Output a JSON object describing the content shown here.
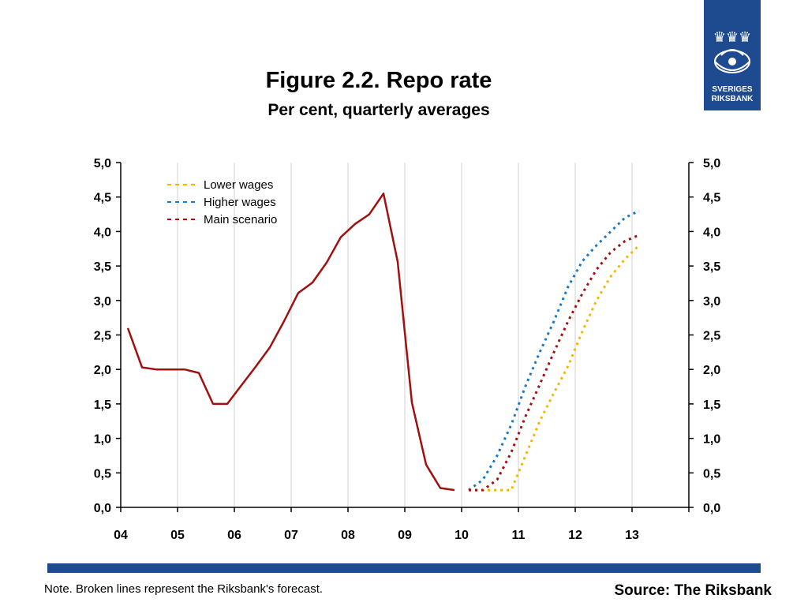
{
  "title": "Figure 2.2. Repo rate",
  "subtitle": "Per cent, quarterly averages",
  "logo": {
    "line1": "SVERIGES",
    "line2": "RIKSBANK"
  },
  "note": "Note. Broken lines represent the Riksbank's forecast.",
  "source": "Source: The Riksbank",
  "colors": {
    "brand": "#1e4b8f",
    "outcome": "#a01010",
    "lower": "#f2b705",
    "higher": "#1a78c2",
    "main": "#a01010"
  },
  "chart_data": {
    "type": "line",
    "xlim": [
      2004.0,
      2014.0
    ],
    "ylim": [
      0,
      5
    ],
    "x_tick_labels": [
      "04",
      "05",
      "06",
      "07",
      "08",
      "09",
      "10",
      "11",
      "12",
      "13"
    ],
    "y_tick_labels": [
      "0,0",
      "0,5",
      "1,0",
      "1,5",
      "2,0",
      "2,5",
      "3,0",
      "3,5",
      "4,0",
      "4,5",
      "5,0"
    ],
    "grid": "vertical",
    "legend_position": "top-left",
    "series": [
      {
        "legend": "",
        "style": "solid",
        "color": "#a01010",
        "x": [
          2004.125,
          2004.375,
          2004.625,
          2004.875,
          2005.125,
          2005.375,
          2005.625,
          2005.875,
          2006.125,
          2006.375,
          2006.625,
          2006.875,
          2007.125,
          2007.375,
          2007.625,
          2007.875,
          2008.125,
          2008.375,
          2008.625,
          2008.875,
          2009.125,
          2009.375,
          2009.625,
          2009.875
        ],
        "y": [
          2.6,
          2.03,
          2.0,
          2.0,
          2.0,
          1.95,
          1.5,
          1.5,
          1.77,
          2.04,
          2.32,
          2.7,
          3.11,
          3.26,
          3.55,
          3.92,
          4.11,
          4.25,
          4.55,
          3.56,
          1.52,
          0.62,
          0.28,
          0.25
        ]
      },
      {
        "name": "Lower wages",
        "style": "dotted",
        "color": "#f2b705",
        "x": [
          2010.125,
          2010.375,
          2010.625,
          2010.875,
          2011.125,
          2011.375,
          2011.625,
          2011.875,
          2012.125,
          2012.375,
          2012.625,
          2012.875,
          2013.125
        ],
        "y": [
          0.25,
          0.25,
          0.25,
          0.25,
          0.75,
          1.25,
          1.66,
          2.05,
          2.55,
          3.0,
          3.35,
          3.6,
          3.8
        ]
      },
      {
        "name": "Higher wages",
        "style": "dotted",
        "color": "#1a78c2",
        "x": [
          2010.125,
          2010.375,
          2010.625,
          2010.875,
          2011.125,
          2011.375,
          2011.625,
          2011.875,
          2012.125,
          2012.375,
          2012.625,
          2012.875,
          2013.125
        ],
        "y": [
          0.25,
          0.4,
          0.75,
          1.2,
          1.76,
          2.25,
          2.7,
          3.2,
          3.57,
          3.8,
          4.0,
          4.2,
          4.3
        ]
      },
      {
        "name": "Main scenario",
        "style": "dotted",
        "color": "#a01010",
        "x": [
          2010.125,
          2010.375,
          2010.625,
          2010.875,
          2011.125,
          2011.375,
          2011.625,
          2011.875,
          2012.125,
          2012.375,
          2012.625,
          2012.875,
          2013.125
        ],
        "y": [
          0.25,
          0.25,
          0.4,
          0.8,
          1.32,
          1.78,
          2.25,
          2.7,
          3.1,
          3.45,
          3.7,
          3.86,
          3.95
        ]
      }
    ]
  }
}
